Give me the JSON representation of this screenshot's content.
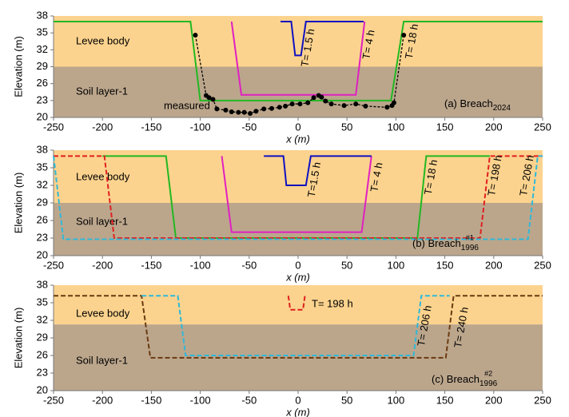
{
  "chart_data": [
    {
      "type": "line",
      "xlabel": "x (m)",
      "ylabel": "Elevation (m)",
      "xlim": [
        -250,
        250
      ],
      "ylim": [
        20,
        38
      ],
      "xticks": [
        -250,
        -200,
        -150,
        -100,
        -50,
        0,
        50,
        100,
        150,
        200,
        250
      ],
      "yticks": [
        20,
        23,
        26,
        29,
        32,
        35,
        38
      ],
      "layers": [
        {
          "name": "Levee body",
          "color": "#fcd38e"
        },
        {
          "name": "Soil layer-1",
          "color": "#bba68c",
          "top": 29
        }
      ],
      "panel_label": {
        "text": "(a) Breach",
        "sub": "2024"
      },
      "series": [
        {
          "name": "T= 18 h",
          "color": "#22b822",
          "dashed": false,
          "x": [
            -250,
            -110,
            -100,
            95,
            108,
            250
          ],
          "values": [
            37,
            37,
            23,
            23,
            37,
            37
          ]
        },
        {
          "name": "T= 4 h",
          "color": "#e020c0",
          "dashed": false,
          "x": [
            -68,
            -58,
            59,
            68
          ],
          "values": [
            37,
            24,
            24,
            37
          ]
        },
        {
          "name": "T= 1.5 h",
          "color": "#1010c0",
          "dashed": false,
          "x": [
            -18,
            -7,
            -3,
            3,
            8,
            67
          ],
          "values": [
            37,
            37,
            31,
            31,
            37,
            37
          ]
        },
        {
          "name": "measured",
          "color": "#000000",
          "dashed": true,
          "markers": true,
          "x": [
            -105,
            -94,
            -91,
            -87,
            -83,
            -74,
            -68,
            -61,
            -55,
            -49,
            -43,
            -35,
            -27,
            -19,
            -13,
            -6,
            2,
            10,
            16,
            21,
            24,
            28,
            34,
            47,
            59,
            69,
            91,
            96,
            98,
            108
          ],
          "values": [
            34.6,
            23.9,
            23.5,
            23.2,
            21.5,
            21.3,
            21.0,
            20.9,
            20.9,
            20.7,
            21.1,
            21.5,
            21.6,
            21.8,
            22.0,
            22.4,
            22.4,
            22.6,
            23.5,
            23.9,
            23.6,
            22.9,
            22.4,
            22.1,
            22.4,
            22.0,
            21.8,
            22.1,
            22.6,
            34.6
          ]
        }
      ]
    },
    {
      "type": "line",
      "xlabel": "x (m)",
      "ylabel": "Elevation (m)",
      "xlim": [
        -250,
        250
      ],
      "ylim": [
        20,
        38
      ],
      "xticks": [
        -250,
        -200,
        -150,
        -100,
        -50,
        0,
        50,
        100,
        150,
        200,
        250
      ],
      "yticks": [
        20,
        23,
        26,
        29,
        32,
        35,
        38
      ],
      "layers": [
        {
          "name": "Levee body",
          "color": "#fcd38e"
        },
        {
          "name": "Soil layer-1",
          "color": "#bba68c",
          "top": 29
        }
      ],
      "panel_label": {
        "text": "(b) Breach",
        "sub": "1996",
        "sup": "#1"
      },
      "series": [
        {
          "name": "T= 18 h",
          "color": "#22b822",
          "dashed": false,
          "x": [
            -200,
            -135,
            -125,
            122,
            131,
            196
          ],
          "values": [
            37,
            37,
            23,
            23,
            37,
            37
          ]
        },
        {
          "name": "T= 4 h",
          "color": "#e020c0",
          "dashed": false,
          "x": [
            -78,
            -68,
            65,
            75
          ],
          "values": [
            37,
            24,
            24,
            37
          ]
        },
        {
          "name": "T=1.5 h",
          "color": "#1010c0",
          "dashed": false,
          "x": [
            -35,
            -15,
            -12,
            8,
            13,
            75
          ],
          "values": [
            37,
            37,
            32,
            32,
            37,
            37
          ]
        },
        {
          "name": "T= 198 h",
          "color": "#e02020",
          "dashed": true,
          "x": [
            -250,
            -198,
            -188,
            186,
            196,
            250
          ],
          "values": [
            37,
            37,
            23,
            23,
            37,
            37
          ]
        },
        {
          "name": "T= 206 h",
          "color": "#30b8d8",
          "dashed": true,
          "x": [
            -250,
            -240,
            235,
            245,
            250
          ],
          "values": [
            37,
            22.8,
            22.8,
            37,
            37
          ]
        }
      ]
    },
    {
      "type": "line",
      "xlabel": "x (m)",
      "ylabel": "Elevation (m)",
      "xlim": [
        -250,
        250
      ],
      "ylim": [
        20,
        38
      ],
      "xticks": [
        -250,
        -200,
        -150,
        -100,
        -50,
        0,
        50,
        100,
        150,
        200,
        250
      ],
      "yticks": [
        20,
        23,
        26,
        29,
        32,
        35,
        38
      ],
      "layers": [
        {
          "name": "Levee body",
          "color": "#fcd38e"
        },
        {
          "name": "Soil layer-1",
          "color": "#bba68c",
          "top": 31.3
        }
      ],
      "panel_label": {
        "text": "(c) Breach",
        "sub": "1996",
        "sup": "#2"
      },
      "series": [
        {
          "name": "T= 240 h",
          "color": "#6b3a10",
          "dashed": true,
          "x": [
            -250,
            -160,
            -151,
            151,
            159,
            250
          ],
          "values": [
            36.2,
            36.2,
            25.6,
            25.6,
            36.2,
            36.2
          ]
        },
        {
          "name": "T= 206 h",
          "color": "#30b8d8",
          "dashed": true,
          "x": [
            -160,
            -123,
            -115,
            118,
            126,
            155
          ],
          "values": [
            36.2,
            36.2,
            26,
            26,
            36.2,
            36.2
          ]
        },
        {
          "name": "T= 198 h",
          "color": "#e02020",
          "dashed": true,
          "x": [
            -10,
            -8,
            5,
            7
          ],
          "values": [
            36.2,
            33.8,
            33.8,
            36.2
          ]
        }
      ]
    }
  ]
}
